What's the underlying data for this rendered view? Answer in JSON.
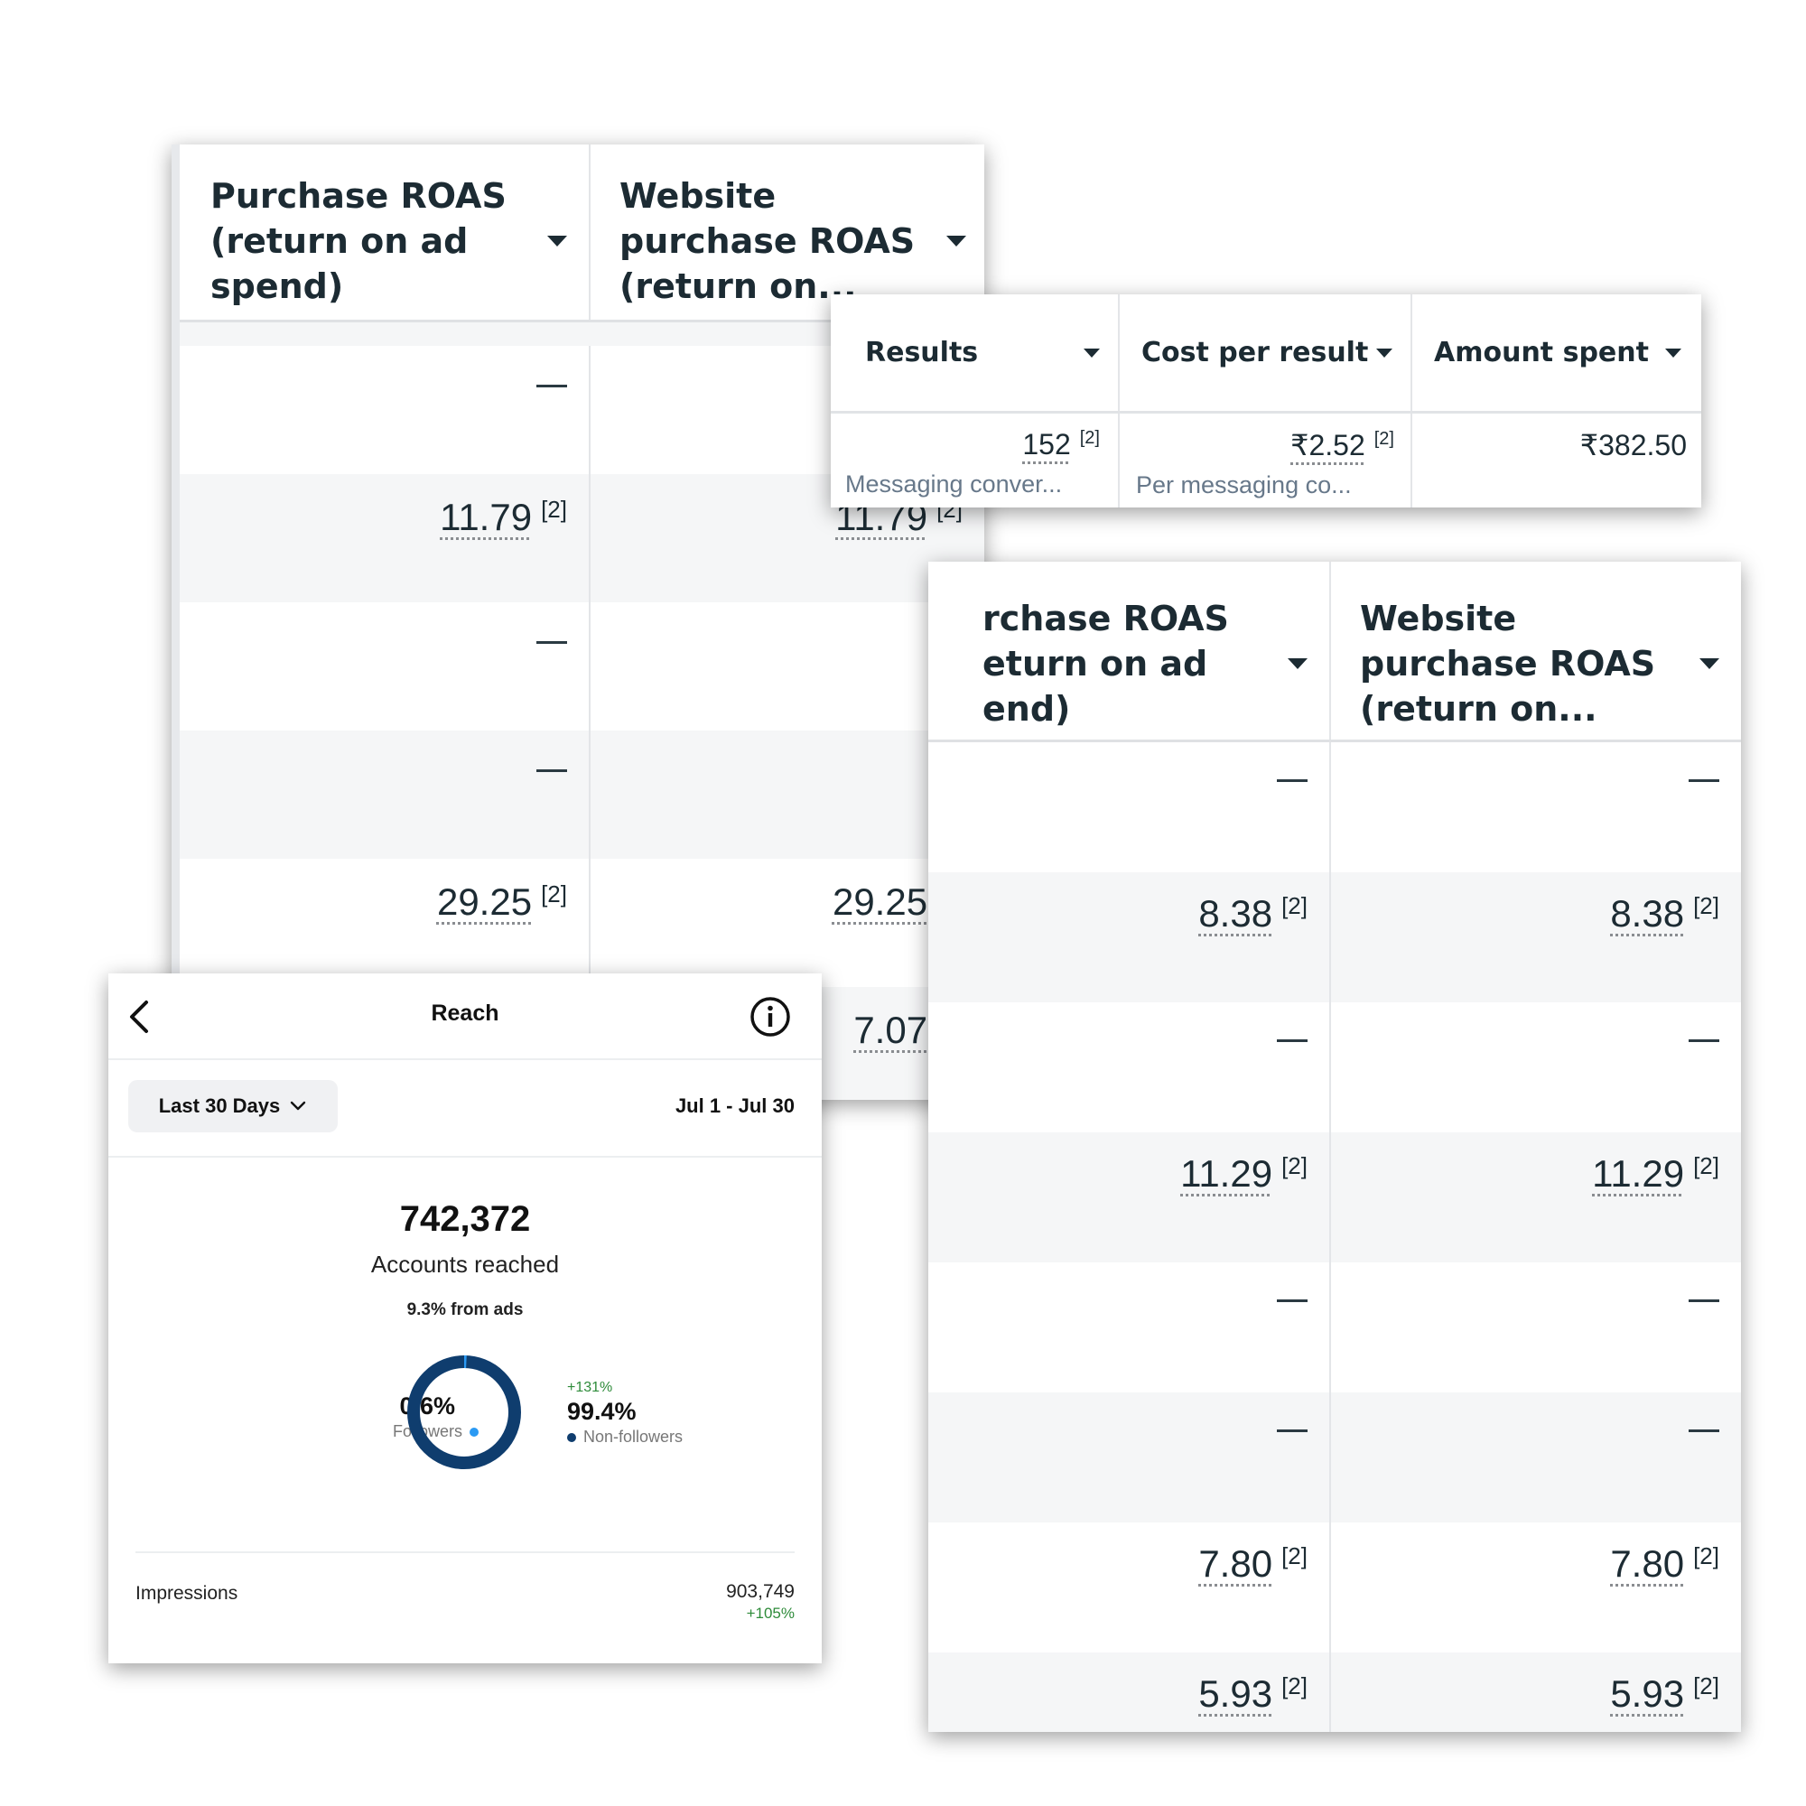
{
  "table_left": {
    "columns": [
      {
        "label": "Purchase ROAS\n(return on ad\nspend)"
      },
      {
        "label": "Website\npurchase ROAS\n(return on..."
      }
    ],
    "rows": [
      {
        "c1": "",
        "c2": ""
      },
      {
        "c1": "11.79",
        "c1ref": "[2]",
        "c2": "11.79",
        "c2ref": "[2]"
      },
      {
        "c1": "",
        "c2": ""
      },
      {
        "c1": "",
        "c2": ""
      },
      {
        "c1": "29.25",
        "c1ref": "[2]",
        "c2": "29.25",
        "c2ref": "[2]"
      },
      {
        "c1": "",
        "c2": "7.07",
        "c2ref": "[2]"
      }
    ]
  },
  "table_results": {
    "columns": [
      {
        "label": "Results"
      },
      {
        "label": "Cost per result"
      },
      {
        "label": "Amount spent"
      }
    ],
    "row": {
      "results_value": "152",
      "results_ref": "[2]",
      "results_sub": "Messaging conver...",
      "cost_value": "₹2.52",
      "cost_ref": "[2]",
      "cost_sub": "Per messaging co...",
      "amount_value": "₹382.50"
    }
  },
  "table_right": {
    "columns": [
      {
        "label": "rchase ROAS\neturn on ad\nend)"
      },
      {
        "label": "Website\npurchase ROAS\n(return on..."
      }
    ],
    "rows": [
      {
        "c1": "",
        "c2": ""
      },
      {
        "c1": "8.38",
        "c1ref": "[2]",
        "c2": "8.38",
        "c2ref": "[2]"
      },
      {
        "c1": "",
        "c2": ""
      },
      {
        "c1": "11.29",
        "c1ref": "[2]",
        "c2": "11.29",
        "c2ref": "[2]"
      },
      {
        "c1": "",
        "c2": ""
      },
      {
        "c1": "",
        "c2": ""
      },
      {
        "c1": "7.80",
        "c1ref": "[2]",
        "c2": "7.80",
        "c2ref": "[2]"
      },
      {
        "c1": "5.93",
        "c1ref": "[2]",
        "c2": "5.93",
        "c2ref": "[2]"
      }
    ]
  },
  "reach": {
    "title": "Reach",
    "back_icon": "chevron-left-icon",
    "info_icon": "info-icon",
    "range_label": "Last 30 Days",
    "date_range": "Jul 1 - Jul 30",
    "total": "742,372",
    "total_label": "Accounts reached",
    "from_ads": "9.3% from ads",
    "followers_pct": "0.6%",
    "followers_label": "Followers",
    "followers_share": 0.006,
    "nonfollowers_change": "+131%",
    "nonfollowers_pct": "99.4%",
    "nonfollowers_label": "Non-followers",
    "impressions_label": "Impressions",
    "impressions_value": "903,749",
    "impressions_change": "+105%",
    "colors": {
      "followers": "#2b9af3",
      "nonfollowers": "#0f3d6e",
      "positive": "#2e8b3a"
    }
  }
}
